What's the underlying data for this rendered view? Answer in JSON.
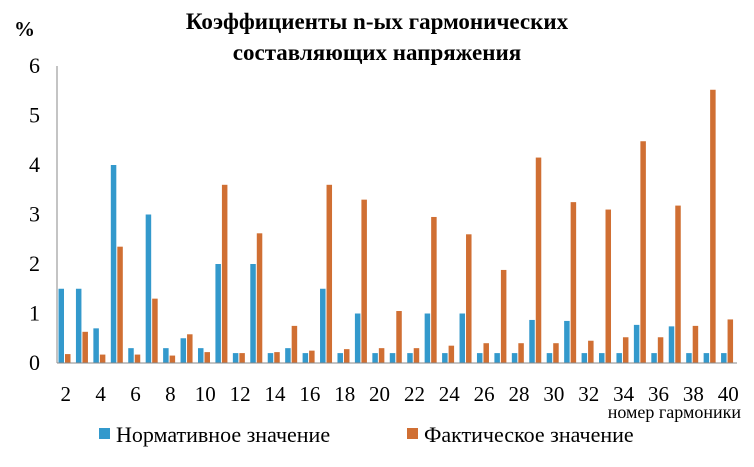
{
  "chart_data": {
    "type": "bar",
    "title_line1": "Коэффициенты n-ых гармонических",
    "title_line2": "составляющих напряжения",
    "ylabel": "%",
    "xlabel": "номер гармоники",
    "ylim": [
      0,
      6
    ],
    "yticks": [
      "0",
      "1",
      "2",
      "3",
      "4",
      "5",
      "6"
    ],
    "grid": false,
    "legend_position": "bottom",
    "categories": [
      2,
      3,
      4,
      5,
      6,
      7,
      8,
      9,
      10,
      11,
      12,
      13,
      14,
      15,
      16,
      17,
      18,
      19,
      20,
      21,
      22,
      23,
      24,
      25,
      26,
      27,
      28,
      29,
      30,
      31,
      32,
      33,
      34,
      35,
      36,
      37,
      38,
      39,
      40
    ],
    "xtick_labels": [
      "2",
      "4",
      "6",
      "8",
      "10",
      "12",
      "14",
      "16",
      "18",
      "20",
      "22",
      "24",
      "26",
      "28",
      "30",
      "32",
      "34",
      "36",
      "38",
      "40"
    ],
    "series": [
      {
        "name": "Нормативное значение",
        "color": "#3399cc",
        "values": [
          1.5,
          1.5,
          0.7,
          4.0,
          0.3,
          3.0,
          0.3,
          0.5,
          0.3,
          2.0,
          0.2,
          2.0,
          0.2,
          0.3,
          0.2,
          1.5,
          0.2,
          1.0,
          0.2,
          0.2,
          0.2,
          1.0,
          0.2,
          1.0,
          0.2,
          0.2,
          0.2,
          0.87,
          0.2,
          0.85,
          0.2,
          0.2,
          0.2,
          0.77,
          0.2,
          0.74,
          0.2,
          0.2,
          0.2
        ]
      },
      {
        "name": "Фактическое значение",
        "color": "#d06f33",
        "values": [
          0.18,
          0.63,
          0.17,
          2.35,
          0.17,
          1.3,
          0.15,
          0.58,
          0.22,
          3.6,
          0.2,
          2.62,
          0.22,
          0.75,
          0.25,
          3.6,
          0.28,
          3.3,
          0.3,
          1.05,
          0.3,
          2.95,
          0.35,
          2.6,
          0.4,
          1.88,
          0.4,
          4.15,
          0.4,
          3.25,
          0.45,
          3.1,
          0.52,
          4.48,
          0.52,
          3.18,
          0.75,
          5.52,
          0.88
        ]
      }
    ]
  }
}
